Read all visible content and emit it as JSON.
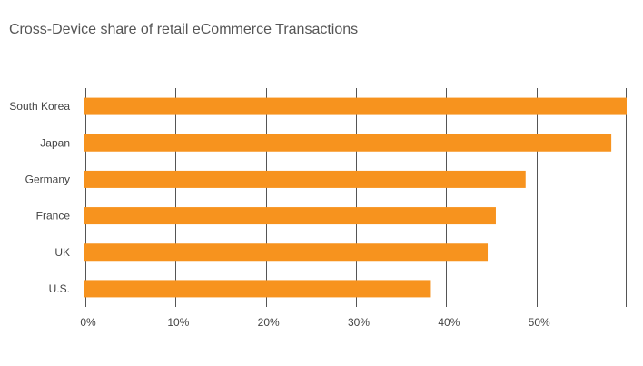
{
  "chart_data": {
    "type": "bar",
    "orientation": "horizontal",
    "title": "Cross-Device share of retail eCommerce Transactions",
    "categories": [
      "South Korea",
      "Japan",
      "Germany",
      "France",
      "UK",
      "U.S."
    ],
    "values": [
      60,
      58.3,
      48.8,
      45.5,
      44.6,
      38.3
    ],
    "x_tick_labels": [
      "0%",
      "10%",
      "20%",
      "30%",
      "40%",
      "50%"
    ],
    "x_ticks": [
      0,
      10,
      20,
      30,
      40,
      50
    ],
    "xlim": [
      0,
      60
    ],
    "xlabel": "",
    "ylabel": "",
    "grid": true,
    "legend": "none",
    "bar_color": "#f7931e",
    "grid_color": "#555555"
  }
}
